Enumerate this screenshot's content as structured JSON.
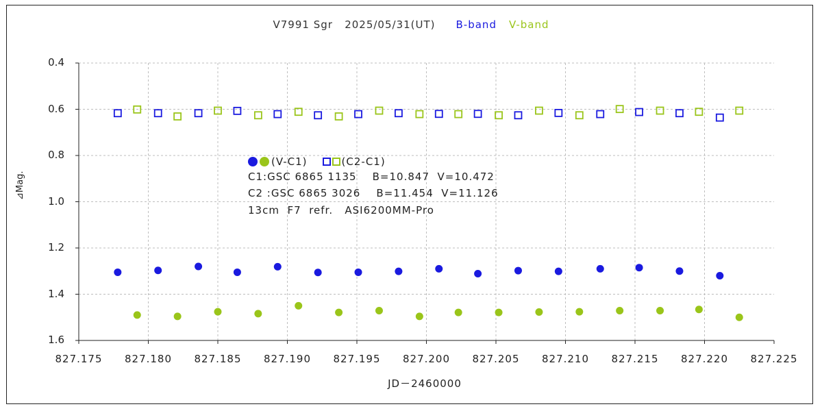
{
  "chart_title": {
    "main": "V7991 Sgr   2025/05/31(UT)",
    "b_band": "B-band",
    "v_band": "V-band"
  },
  "legend": {
    "v_c1": "(V-C1)",
    "c2_c1": "(C2-C1)"
  },
  "notes": {
    "c1": "C1:GSC 6865 1135    B=10.847  V=10.472",
    "c2": "C2 :GSC 6865 3026    B=11.454  V=11.126",
    "instrument": "13cm  F7  refr.   ASI6200MM-Pro"
  },
  "colors": {
    "b": "#1a1adf",
    "v": "#9ac51a",
    "grid": "#bdbdbd"
  },
  "chart_data": {
    "type": "scatter",
    "xlabel": "JD－2460000",
    "ylabel": "⊿Mag.",
    "xlim": [
      827.175,
      827.225
    ],
    "ylim": [
      0.4,
      1.6
    ],
    "y_inverted": true,
    "grid": true,
    "x_ticks": [
      "827.175",
      "827.180",
      "827.185",
      "827.190",
      "827.195",
      "827.200",
      "827.205",
      "827.210",
      "827.215",
      "827.220",
      "827.225"
    ],
    "y_ticks": [
      "0.4",
      "0.6",
      "0.8",
      "1.0",
      "1.2",
      "1.4",
      "1.6"
    ],
    "series": [
      {
        "marker": "filled-circle",
        "color": "#1a1adf",
        "points": [
          [
            827.1778,
            1.305
          ],
          [
            827.1807,
            1.297
          ],
          [
            827.1836,
            1.28
          ],
          [
            827.1864,
            1.305
          ],
          [
            827.1893,
            1.281
          ],
          [
            827.1922,
            1.306
          ],
          [
            827.1951,
            1.305
          ],
          [
            827.198,
            1.301
          ],
          [
            827.2009,
            1.29
          ],
          [
            827.2037,
            1.311
          ],
          [
            827.2066,
            1.298
          ],
          [
            827.2095,
            1.301
          ],
          [
            827.2125,
            1.29
          ],
          [
            827.2153,
            1.285
          ],
          [
            827.2182,
            1.3
          ],
          [
            827.2211,
            1.32
          ]
        ]
      },
      {
        "marker": "filled-circle",
        "color": "#9ac51a",
        "points": [
          [
            827.1792,
            1.49
          ],
          [
            827.1821,
            1.496
          ],
          [
            827.185,
            1.476
          ],
          [
            827.1879,
            1.484
          ],
          [
            827.1908,
            1.45
          ],
          [
            827.1937,
            1.479
          ],
          [
            827.1966,
            1.471
          ],
          [
            827.1995,
            1.496
          ],
          [
            827.2023,
            1.479
          ],
          [
            827.2052,
            1.479
          ],
          [
            827.2081,
            1.477
          ],
          [
            827.211,
            1.476
          ],
          [
            827.2139,
            1.471
          ],
          [
            827.2168,
            1.471
          ],
          [
            827.2196,
            1.466
          ],
          [
            827.2225,
            1.5
          ]
        ]
      },
      {
        "marker": "open-square",
        "color": "#1a1adf",
        "points": [
          [
            827.1778,
            0.617
          ],
          [
            827.1807,
            0.617
          ],
          [
            827.1836,
            0.617
          ],
          [
            827.1864,
            0.607
          ],
          [
            827.1893,
            0.621
          ],
          [
            827.1922,
            0.626
          ],
          [
            827.1951,
            0.621
          ],
          [
            827.198,
            0.617
          ],
          [
            827.2009,
            0.62
          ],
          [
            827.2037,
            0.62
          ],
          [
            827.2066,
            0.626
          ],
          [
            827.2095,
            0.616
          ],
          [
            827.2125,
            0.621
          ],
          [
            827.2153,
            0.612
          ],
          [
            827.2182,
            0.617
          ],
          [
            827.2211,
            0.636
          ]
        ]
      },
      {
        "marker": "open-square",
        "color": "#9ac51a",
        "points": [
          [
            827.1792,
            0.601
          ],
          [
            827.1821,
            0.631
          ],
          [
            827.185,
            0.606
          ],
          [
            827.1879,
            0.626
          ],
          [
            827.1908,
            0.611
          ],
          [
            827.1937,
            0.631
          ],
          [
            827.1966,
            0.606
          ],
          [
            827.1995,
            0.621
          ],
          [
            827.2023,
            0.621
          ],
          [
            827.2052,
            0.626
          ],
          [
            827.2081,
            0.606
          ],
          [
            827.211,
            0.626
          ],
          [
            827.2139,
            0.599
          ],
          [
            827.2168,
            0.606
          ],
          [
            827.2196,
            0.611
          ],
          [
            827.2225,
            0.606
          ]
        ]
      }
    ]
  }
}
